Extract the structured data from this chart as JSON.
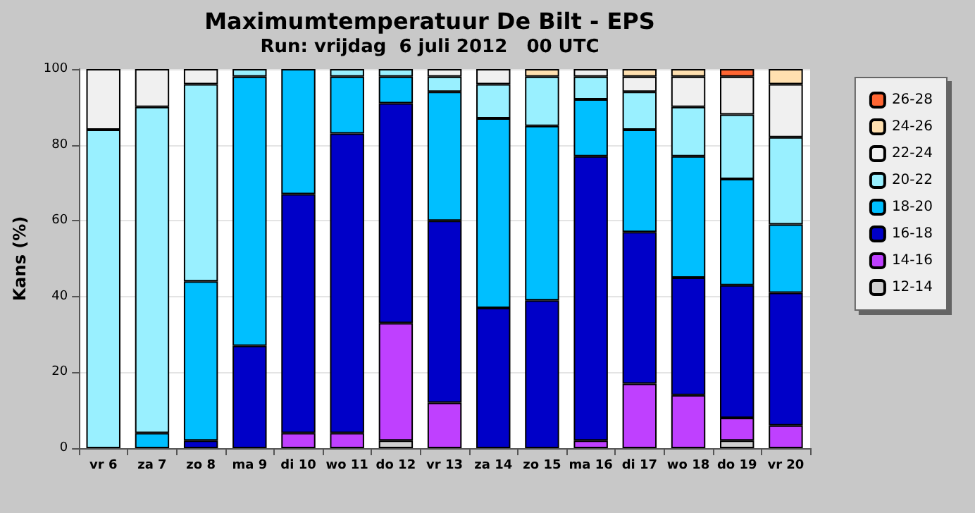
{
  "chart_data": {
    "type": "bar",
    "stacked": true,
    "title": "Maximumtemperatuur De Bilt - EPS",
    "subtitle": "Run: vrijdag  6 juli 2012   00 UTC",
    "ylabel": "Kans (%)",
    "categories": [
      "vr 6",
      "za 7",
      "zo 8",
      "ma 9",
      "di 10",
      "wo 11",
      "do 12",
      "vr 13",
      "za 14",
      "zo 15",
      "ma 16",
      "di 17",
      "wo 18",
      "do 19",
      "vr 20"
    ],
    "ylim": [
      0,
      100
    ],
    "yticks": [
      0,
      20,
      40,
      60,
      80,
      100
    ],
    "grid": "y",
    "legend": "right",
    "series": [
      {
        "name": "12-14",
        "color": "#d0d0d0",
        "values": [
          0,
          0,
          0,
          0,
          0,
          0,
          2,
          0,
          0,
          0,
          0,
          0,
          0,
          2,
          0
        ]
      },
      {
        "name": "14-16",
        "color": "#bf40ff",
        "values": [
          0,
          0,
          0,
          0,
          4,
          4,
          31,
          12,
          0,
          0,
          2,
          17,
          14,
          6,
          6
        ]
      },
      {
        "name": "16-18",
        "color": "#0000c8",
        "values": [
          0,
          0,
          2,
          27,
          63,
          79,
          58,
          48,
          37,
          39,
          75,
          40,
          31,
          35,
          35
        ]
      },
      {
        "name": "18-20",
        "color": "#00bfff",
        "values": [
          0,
          4,
          42,
          71,
          33,
          15,
          7,
          34,
          50,
          46,
          15,
          27,
          32,
          28,
          18
        ]
      },
      {
        "name": "20-22",
        "color": "#99f0ff",
        "values": [
          84,
          86,
          52,
          2,
          0,
          2,
          2,
          4,
          9,
          13,
          6,
          10,
          13,
          17,
          23
        ]
      },
      {
        "name": "22-24",
        "color": "#f0f0f0",
        "values": [
          16,
          10,
          4,
          0,
          0,
          0,
          0,
          2,
          4,
          0,
          2,
          4,
          8,
          10,
          14
        ]
      },
      {
        "name": "24-26",
        "color": "#ffe0b0",
        "values": [
          0,
          0,
          0,
          0,
          0,
          0,
          0,
          0,
          0,
          2,
          0,
          2,
          2,
          0,
          4
        ]
      },
      {
        "name": "26-28",
        "color": "#ff6633",
        "values": [
          0,
          0,
          0,
          0,
          0,
          0,
          0,
          0,
          0,
          0,
          0,
          0,
          0,
          2,
          0
        ]
      }
    ]
  }
}
